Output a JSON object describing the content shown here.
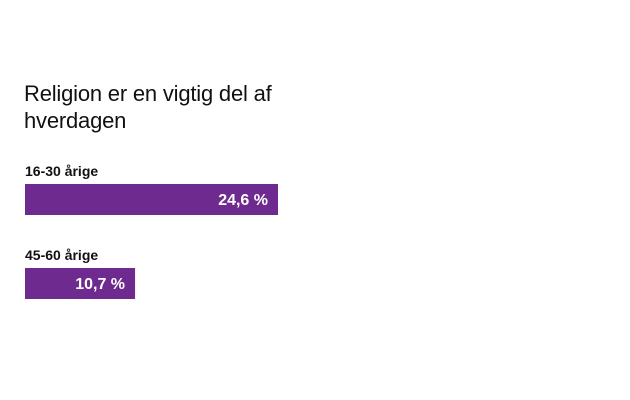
{
  "chart_data": {
    "type": "bar",
    "orientation": "horizontal",
    "title": "Religion er en vigtig del af hverdagen",
    "categories": [
      "16-30 årige",
      "45-60 årige"
    ],
    "values": [
      24.6,
      10.7
    ],
    "value_labels": [
      "24,6 %",
      "10,7 %"
    ],
    "unit": "%",
    "xlim": [
      0,
      60
    ],
    "grid": false,
    "bar_color": "#6f2a8f"
  }
}
